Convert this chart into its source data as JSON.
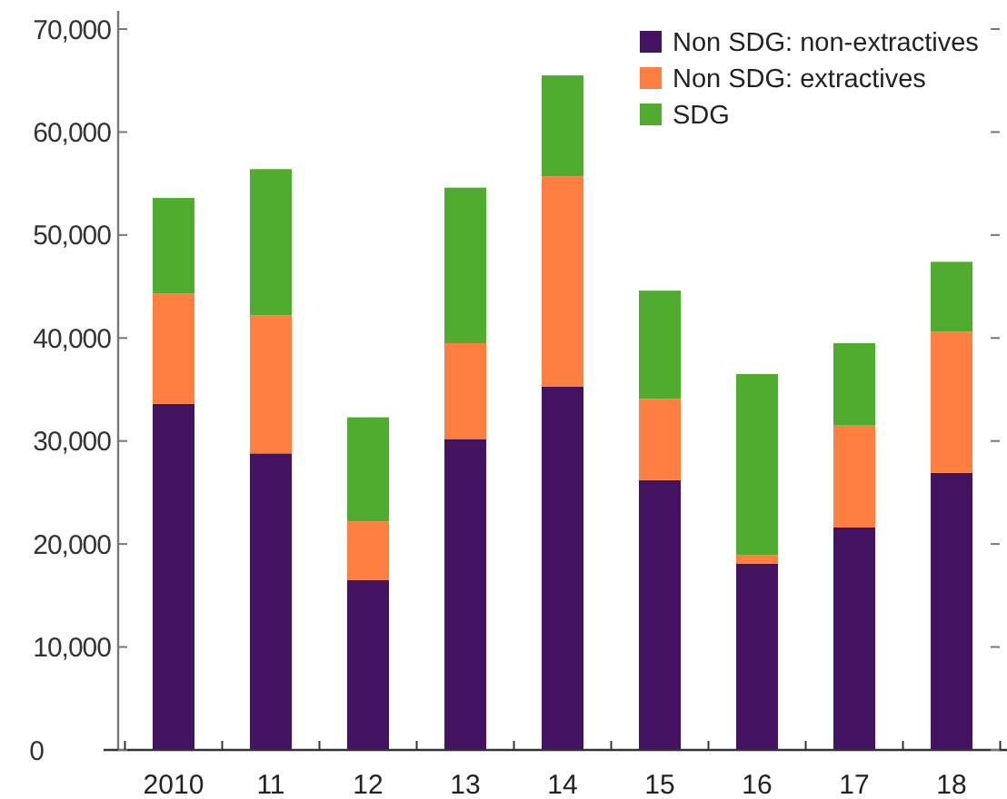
{
  "chart_data": {
    "type": "bar",
    "stacked": true,
    "categories": [
      "2010",
      "11",
      "12",
      "13",
      "14",
      "15",
      "16",
      "17",
      "18"
    ],
    "series": [
      {
        "name": "Non SDG: non-extractives",
        "color": "#431260",
        "values": [
          33600,
          28800,
          16500,
          30200,
          35300,
          26200,
          18100,
          21600,
          26900
        ]
      },
      {
        "name": "Non SDG: extractives",
        "color": "#ff7f40",
        "values": [
          10700,
          13400,
          5700,
          9300,
          20400,
          7900,
          800,
          9900,
          13700
        ]
      },
      {
        "name": "SDG",
        "color": "#4fac2f",
        "values": [
          9300,
          14200,
          10100,
          15100,
          9800,
          10500,
          17600,
          8000,
          6800
        ]
      }
    ],
    "ylim": [
      0,
      70000
    ],
    "yticks": [
      {
        "value": 0,
        "label": "0"
      },
      {
        "value": 10000,
        "label": "10,000"
      },
      {
        "value": 20000,
        "label": "20,000"
      },
      {
        "value": 30000,
        "label": "30,000"
      },
      {
        "value": 40000,
        "label": "40,000"
      },
      {
        "value": 50000,
        "label": "50,000"
      },
      {
        "value": 60000,
        "label": "60,000"
      },
      {
        "value": 70000,
        "label": "70,000"
      }
    ],
    "grid": false,
    "legend": "top right"
  }
}
